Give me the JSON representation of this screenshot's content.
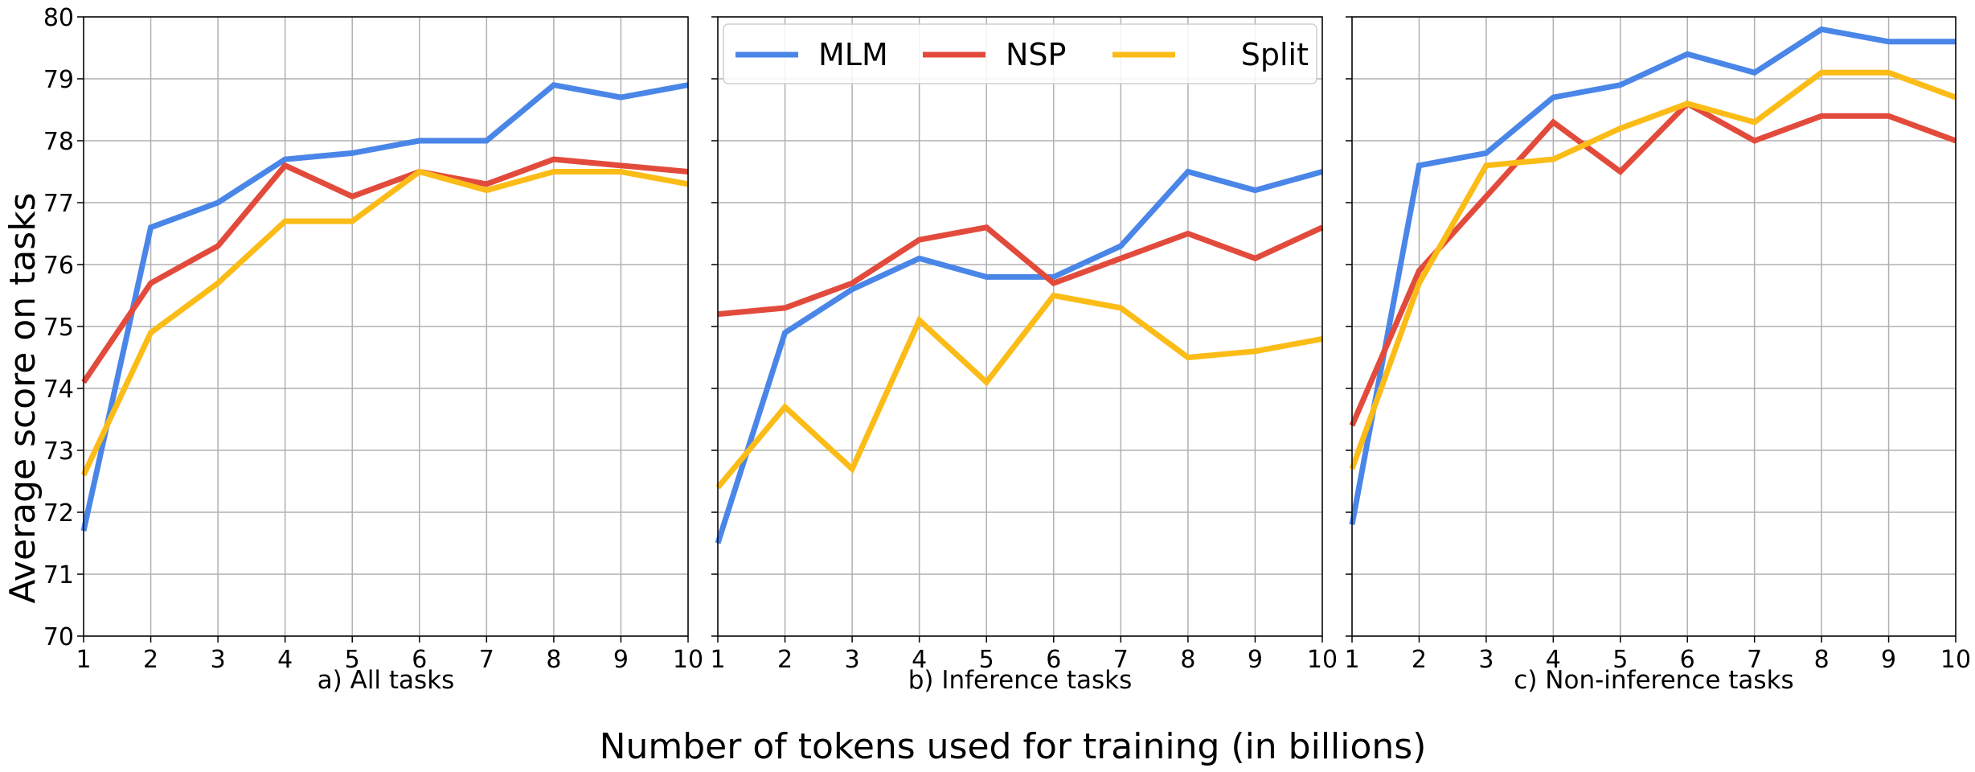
{
  "chart_data": {
    "type": "line",
    "ylabel": "Average score on tasks",
    "xlabel": "Number of tokens used for training (in billions)",
    "xlim": [
      1,
      10
    ],
    "ylim": [
      70,
      80
    ],
    "x": [
      1,
      2,
      3,
      4,
      5,
      6,
      7,
      8,
      9,
      10
    ],
    "grid": true,
    "legend": {
      "placement": "top (panel b)",
      "entries": [
        "MLM",
        "NSP",
        "Split"
      ]
    },
    "series_colors": {
      "MLM": "#4a86e8",
      "NSP": "#e24b3c",
      "Split": "#fbbc17"
    },
    "panels": [
      {
        "subtitle": "a) All tasks",
        "series": [
          {
            "name": "MLM",
            "values": [
              71.7,
              76.6,
              77.0,
              77.7,
              77.8,
              78.0,
              78.0,
              78.9,
              78.7,
              78.9
            ]
          },
          {
            "name": "NSP",
            "values": [
              74.1,
              75.7,
              76.3,
              77.6,
              77.1,
              77.5,
              77.3,
              77.7,
              77.6,
              77.5
            ]
          },
          {
            "name": "Split",
            "values": [
              72.6,
              74.9,
              75.7,
              76.7,
              76.7,
              77.5,
              77.2,
              77.5,
              77.5,
              77.3
            ]
          }
        ]
      },
      {
        "subtitle": "b) Inference tasks",
        "series": [
          {
            "name": "MLM",
            "values": [
              71.5,
              74.9,
              75.6,
              76.1,
              75.8,
              75.8,
              76.3,
              77.5,
              77.2,
              77.5
            ]
          },
          {
            "name": "NSP",
            "values": [
              75.2,
              75.3,
              75.7,
              76.4,
              76.6,
              75.7,
              76.1,
              76.5,
              76.1,
              76.6
            ]
          },
          {
            "name": "Split",
            "values": [
              72.4,
              73.7,
              72.7,
              75.1,
              74.1,
              75.5,
              75.3,
              74.5,
              74.6,
              74.8
            ]
          }
        ]
      },
      {
        "subtitle": "c) Non-inference tasks",
        "series": [
          {
            "name": "MLM",
            "values": [
              71.8,
              77.6,
              77.8,
              78.7,
              78.9,
              79.4,
              79.1,
              79.8,
              79.6,
              79.6
            ]
          },
          {
            "name": "NSP",
            "values": [
              73.4,
              75.9,
              77.1,
              78.3,
              77.5,
              78.6,
              78.0,
              78.4,
              78.4,
              78.0
            ]
          },
          {
            "name": "Split",
            "values": [
              72.7,
              75.7,
              77.6,
              77.7,
              78.2,
              78.6,
              78.3,
              79.1,
              79.1,
              78.7
            ]
          }
        ]
      }
    ]
  }
}
